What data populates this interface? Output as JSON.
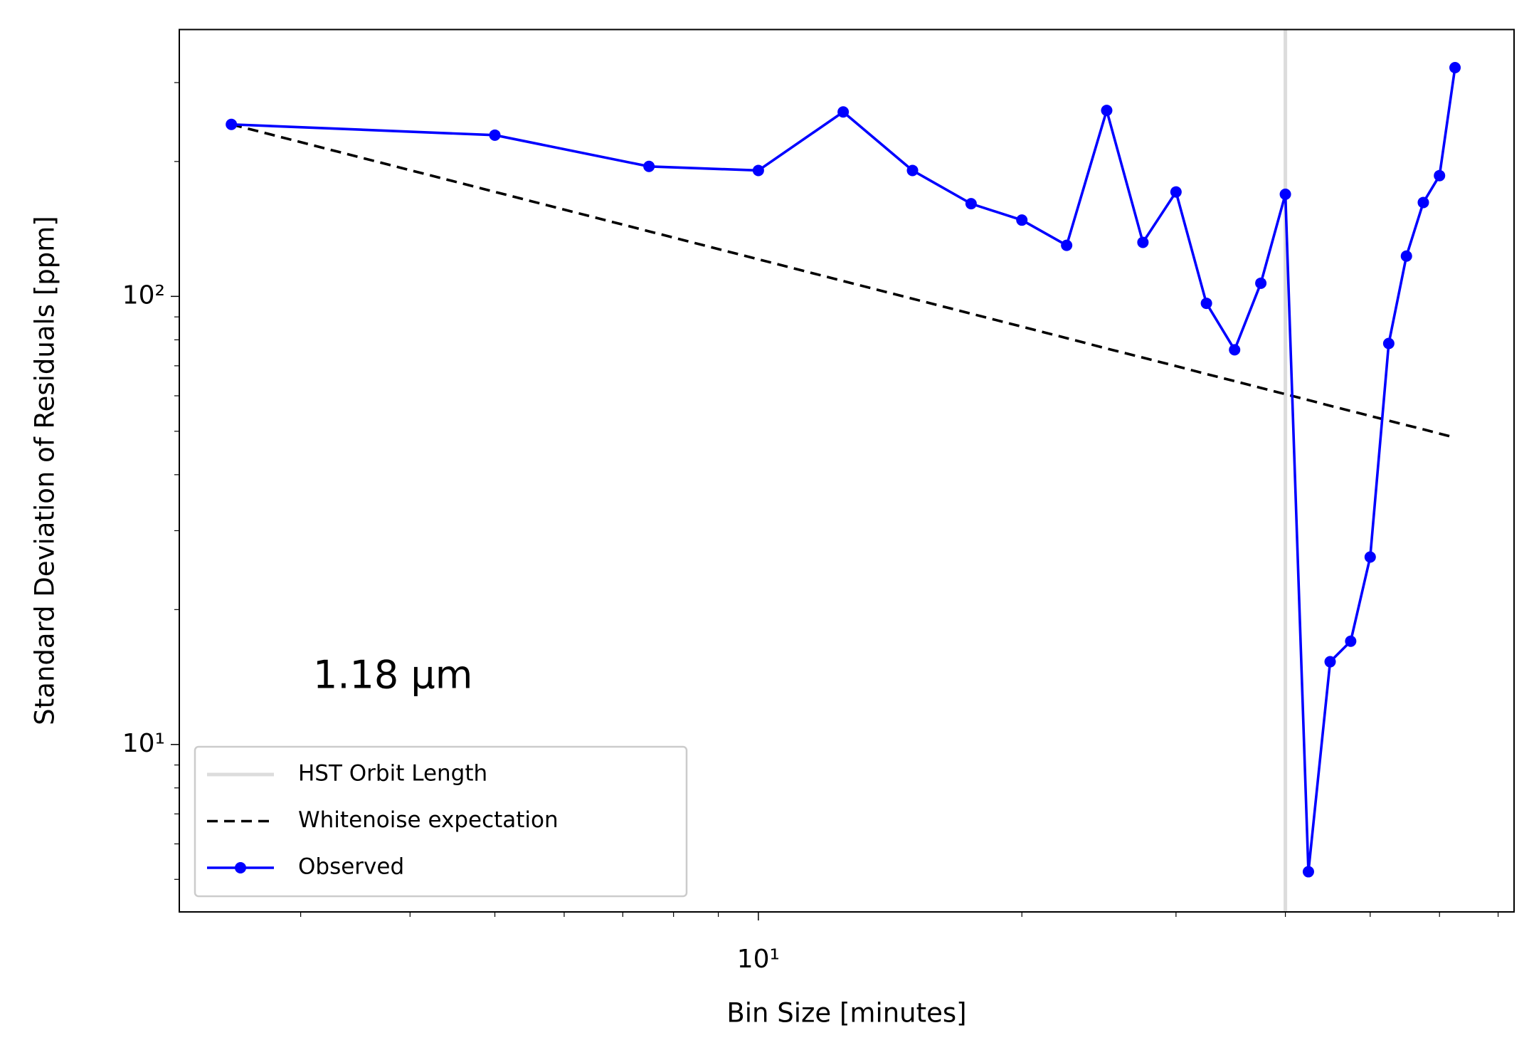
{
  "chart_data": {
    "type": "line",
    "annotation": "1.18 μm",
    "xlabel": "Bin Size [minutes]",
    "ylabel": "Standard Deviation of Residuals [ppm]",
    "xscale": "log",
    "yscale": "log",
    "legend": "lower left",
    "xlim": [
      2.18,
      73.0
    ],
    "ylim": [
      4.23,
      394
    ],
    "xticks": [
      {
        "value": 10,
        "label": "10¹"
      }
    ],
    "xminorticks": [
      3,
      4,
      5,
      6,
      7,
      8,
      9,
      20,
      30,
      40,
      50,
      60,
      70
    ],
    "yticks": [
      {
        "value": 10,
        "label": "10¹"
      },
      {
        "value": 100,
        "label": "10²"
      }
    ],
    "yminorticks": [
      5,
      6,
      7,
      8,
      9,
      20,
      30,
      40,
      50,
      60,
      70,
      80,
      90,
      200,
      300
    ],
    "x": [
      2.5,
      5,
      7.5,
      10,
      12.5,
      15,
      17.5,
      20,
      22.5,
      25,
      27.5,
      30,
      32.5,
      35,
      37.5,
      40,
      42.5,
      45,
      47.5,
      50,
      52.5,
      55,
      57.5,
      60,
      62.5
    ],
    "vline": {
      "name": "HST Orbit Length",
      "color": "#dcdcdc",
      "x": 40
    },
    "series": [
      {
        "name": "Whitenoise expectation",
        "color": "#000000",
        "dashed": true,
        "markers": false,
        "values": [
          242,
          171.1,
          139.7,
          121,
          108.2,
          98.8,
          91.5,
          85.6,
          80.7,
          76.5,
          73.0,
          69.9,
          67.1,
          64.7,
          62.5,
          60.5,
          58.7,
          57.0,
          55.5,
          54.1,
          52.8,
          51.6,
          50.5,
          49.4,
          48.4
        ]
      },
      {
        "name": "Observed",
        "color": "#0000ff",
        "dashed": false,
        "markers": true,
        "values": [
          242,
          229,
          195,
          191,
          258,
          191,
          161,
          148,
          130,
          260,
          132,
          171,
          96.5,
          76,
          107,
          169,
          5.2,
          15.3,
          17.0,
          26.2,
          78.5,
          123,
          162,
          186,
          324
        ]
      }
    ]
  }
}
